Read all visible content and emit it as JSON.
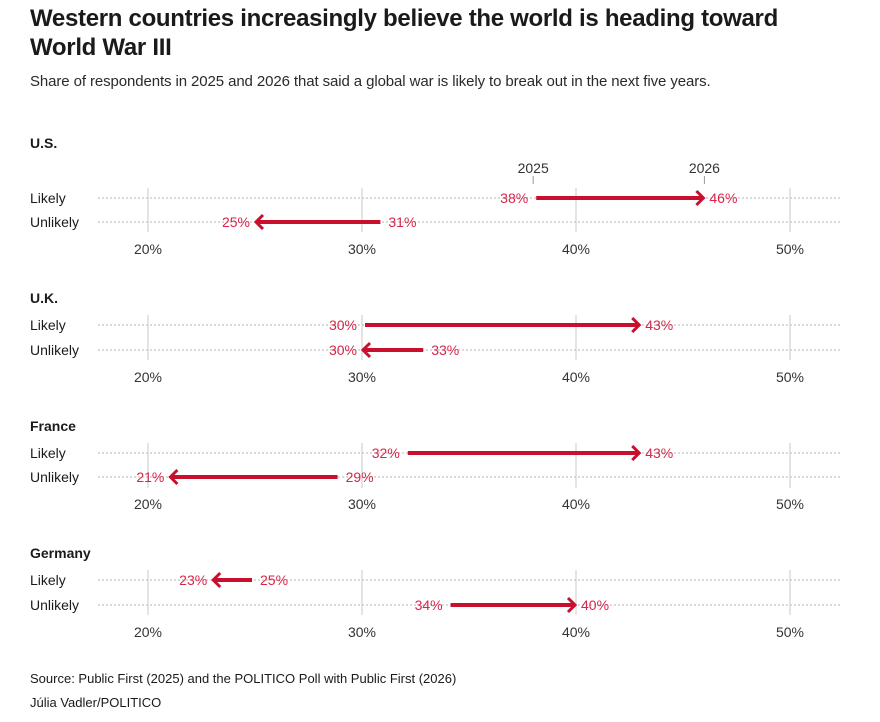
{
  "title": "Western countries increasingly believe the world is heading toward World War III",
  "subtitle": "Share of respondents in 2025 and 2026 that said a global war is likely to break out in the next five years.",
  "footer": {
    "source": "Source: Public First (2025) and the POLITICO Poll with Public First (2026)",
    "credit": "Júlia Vadler/POLITICO"
  },
  "colors": {
    "accent": "#c8102e",
    "label": "#d6264a",
    "grid": "#c8c8c8",
    "dots": "#b5b5b5"
  },
  "chart_data": [
    {
      "type": "dumbbell-arrow",
      "title": "U.S.",
      "legend": [
        "2025",
        "2026"
      ],
      "categories": [
        "Likely",
        "Unlikely"
      ],
      "series": [
        {
          "name": "2025",
          "values": [
            38,
            31
          ]
        },
        {
          "name": "2026",
          "values": [
            46,
            25
          ]
        }
      ],
      "xticks": [
        20,
        30,
        40,
        50
      ],
      "xtick_labels": [
        "20%",
        "30%",
        "40%",
        "50%"
      ],
      "xlim": [
        20,
        50
      ],
      "unit": "%"
    },
    {
      "type": "dumbbell-arrow",
      "title": "U.K.",
      "categories": [
        "Likely",
        "Unlikely"
      ],
      "series": [
        {
          "name": "2025",
          "values": [
            30,
            33
          ]
        },
        {
          "name": "2026",
          "values": [
            43,
            30
          ]
        }
      ],
      "xticks": [
        20,
        30,
        40,
        50
      ],
      "xtick_labels": [
        "20%",
        "30%",
        "40%",
        "50%"
      ],
      "xlim": [
        20,
        50
      ],
      "unit": "%"
    },
    {
      "type": "dumbbell-arrow",
      "title": "France",
      "categories": [
        "Likely",
        "Unlikely"
      ],
      "series": [
        {
          "name": "2025",
          "values": [
            32,
            29
          ]
        },
        {
          "name": "2026",
          "values": [
            43,
            21
          ]
        }
      ],
      "xticks": [
        20,
        30,
        40,
        50
      ],
      "xtick_labels": [
        "20%",
        "30%",
        "40%",
        "50%"
      ],
      "xlim": [
        20,
        50
      ],
      "unit": "%"
    },
    {
      "type": "dumbbell-arrow",
      "title": "Germany",
      "categories": [
        "Likely",
        "Unlikely"
      ],
      "series": [
        {
          "name": "2025",
          "values": [
            25,
            34
          ]
        },
        {
          "name": "2026",
          "values": [
            23,
            40
          ]
        }
      ],
      "xticks": [
        20,
        30,
        40,
        50
      ],
      "xtick_labels": [
        "20%",
        "30%",
        "40%",
        "50%"
      ],
      "xlim": [
        20,
        50
      ],
      "unit": "%"
    }
  ]
}
